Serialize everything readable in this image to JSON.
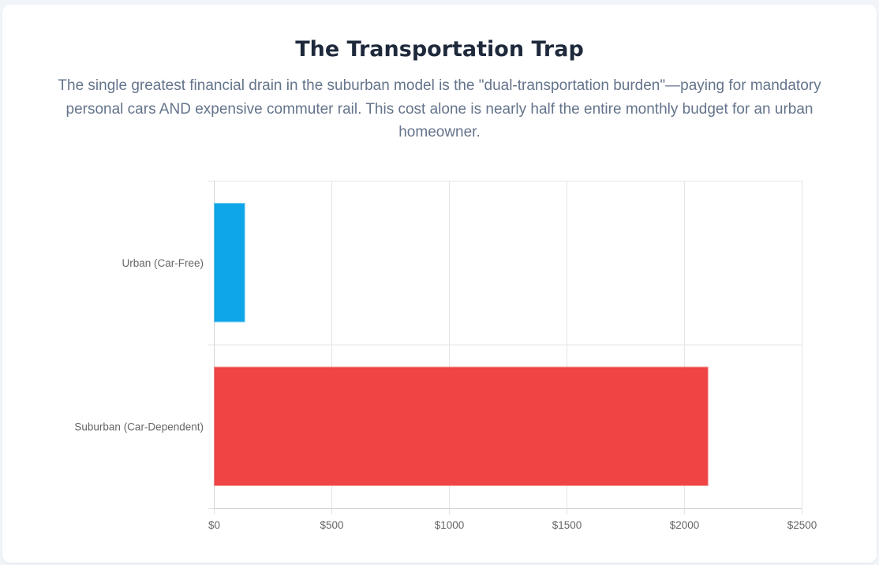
{
  "header": {
    "title": "The Transportation Trap",
    "subtitle": "The single greatest financial drain in the suburban model is the \"dual-transportation burden\"—paying for mandatory personal cars AND expensive commuter rail. This cost alone is nearly half the entire monthly budget for an urban homeowner."
  },
  "chart_data": {
    "type": "bar",
    "orientation": "horizontal",
    "title": "",
    "xlabel": "",
    "ylabel": "",
    "categories": [
      "Urban (Car-Free)",
      "Suburban (Car-Dependent)"
    ],
    "values": [
      130,
      2100
    ],
    "colors": [
      "#0ea5e9",
      "#ef4444"
    ],
    "xlim": [
      0,
      2500
    ],
    "xticks": [
      0,
      500,
      1000,
      1500,
      2000,
      2500
    ],
    "xtick_labels": [
      "$0",
      "$500",
      "$1000",
      "$1500",
      "$2000",
      "$2500"
    ],
    "grid": true,
    "legend": "none"
  }
}
